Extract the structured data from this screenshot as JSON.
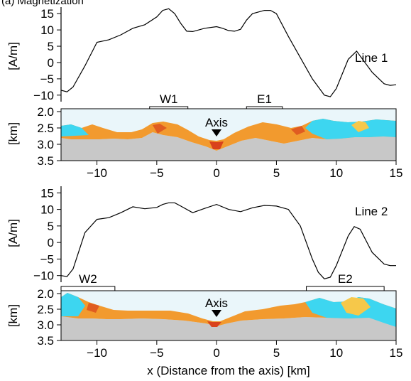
{
  "header_fragment": "(a) ... (only partially visible)",
  "x_axis": {
    "label": "x (Distance from the axis) [km]",
    "range": [
      -13,
      15
    ],
    "ticks": [
      -10,
      -5,
      0,
      5,
      10,
      15
    ],
    "tick_labels": [
      "−10",
      "−5",
      "0",
      "5",
      "10",
      "15"
    ]
  },
  "chart_data": [
    {
      "type": "line",
      "name": "Line 1",
      "panel_label": "Line 1",
      "ylabel": "[A/m]",
      "ylim": [
        -12,
        17
      ],
      "yticks": [
        15,
        10,
        5,
        0,
        -5,
        -10
      ],
      "ytick_labels": [
        "15",
        "10",
        "5",
        "0",
        "−5",
        "−10"
      ],
      "series": [
        {
          "name": "Line 1",
          "x": [
            -13,
            -12.5,
            -12,
            -11,
            -10,
            -9,
            -8,
            -7,
            -6,
            -5,
            -4.5,
            -4,
            -3.5,
            -3,
            -2.5,
            -2,
            -1,
            0,
            0.5,
            1,
            1.5,
            2,
            2.5,
            3,
            4,
            4.5,
            5,
            6,
            7,
            8,
            9,
            9.5,
            10,
            11,
            11.7,
            12,
            13,
            14,
            14.5,
            15
          ],
          "y": [
            -8.5,
            -9,
            -7.5,
            -1,
            6.2,
            7,
            8.5,
            10.5,
            11.6,
            14,
            16,
            16.5,
            15,
            12,
            9.6,
            9.5,
            10.5,
            11,
            10.5,
            9.8,
            9.6,
            10.2,
            13,
            15,
            16,
            16,
            15,
            8,
            1.5,
            -5,
            -10,
            -10.5,
            -8,
            1,
            3.5,
            2,
            -3,
            -6.5,
            -7,
            -6.8
          ]
        }
      ],
      "profile": {
        "ylabel": "[km]",
        "ylim": [
          2.0,
          3.5
        ],
        "yticks": [
          2.0,
          2.5,
          3.0,
          3.5
        ],
        "ytick_labels": [
          "2.0",
          "2.5",
          "3.0",
          "3.5"
        ],
        "axis_label": "Axis",
        "brackets": [
          {
            "label": "W1",
            "x_start": -5.6,
            "x_end": -2.4
          },
          {
            "label": "E1",
            "x_start": 2.5,
            "x_end": 5.5
          }
        ]
      }
    },
    {
      "type": "line",
      "name": "Line 2",
      "panel_label": "Line 2",
      "ylabel": "[A/m]",
      "ylim": [
        -12,
        17
      ],
      "yticks": [
        15,
        10,
        5,
        0,
        -5,
        -10
      ],
      "ytick_labels": [
        "15",
        "10",
        "5",
        "0",
        "−5",
        "−10"
      ],
      "series": [
        {
          "name": "Line 2",
          "x": [
            -13,
            -12.5,
            -12,
            -11,
            -10,
            -9,
            -8,
            -7,
            -6,
            -5,
            -4.5,
            -4,
            -3.5,
            -3,
            -2,
            -1,
            0,
            1,
            2,
            3,
            4,
            5,
            6,
            7,
            8,
            8.5,
            9,
            9.5,
            10,
            11,
            11.5,
            12,
            13,
            14,
            14.5,
            15
          ],
          "y": [
            -10,
            -10.3,
            -8,
            3,
            7,
            7.5,
            9,
            10.8,
            10.2,
            10.6,
            11.5,
            12,
            12,
            11,
            9,
            10.3,
            11.5,
            10,
            9.3,
            10.5,
            11.2,
            11,
            10,
            5,
            -5,
            -9,
            -11,
            -10.5,
            -7,
            2,
            4.8,
            4,
            -3,
            -6.5,
            -7,
            -7
          ]
        }
      ],
      "profile": {
        "ylabel": "[km]",
        "ylim": [
          2.0,
          3.5
        ],
        "yticks": [
          2.0,
          2.5,
          3.0,
          3.5
        ],
        "ytick_labels": [
          "2.0",
          "2.5",
          "3.0",
          "3.5"
        ],
        "axis_label": "Axis",
        "brackets": [
          {
            "label": "W2",
            "x_start": -13,
            "x_end": -8.5
          },
          {
            "label": "E2",
            "x_start": 7.5,
            "x_end": 14
          }
        ]
      }
    }
  ],
  "colors": {
    "curve": "#000000",
    "rock_gray": "#c8c8c8",
    "cyan": "#3dd6f0",
    "orange": "#f29a2e",
    "red": "#d9421c",
    "yellow": "#f6c84a",
    "water": "#eaf6fa"
  }
}
